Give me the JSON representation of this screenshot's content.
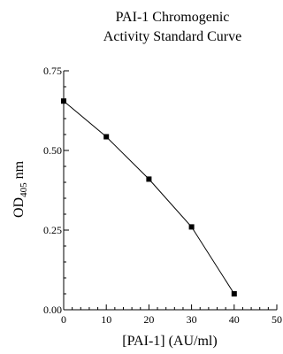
{
  "chart_data": {
    "type": "line",
    "title": [
      "PAI-1 Chromogenic",
      "Activity Standard Curve"
    ],
    "xlabel": "[PAI-1] (AU/ml)",
    "ylabel": {
      "main": "OD",
      "subscript": "405",
      "suffix": " nm"
    },
    "xlim": [
      0,
      50
    ],
    "ylim": [
      0,
      0.75
    ],
    "x_major_ticks": [
      0,
      10,
      20,
      30,
      40,
      50
    ],
    "x_tick_labels": [
      "0",
      "10",
      "20",
      "30",
      "40",
      "50"
    ],
    "x_minor_step": 2,
    "y_major_ticks": [
      0,
      0.25,
      0.5,
      0.75
    ],
    "y_tick_labels": [
      "0.00",
      "0.25",
      "0.50",
      "0.75"
    ],
    "y_minor_step": 0.05,
    "grid": false,
    "marker": "square",
    "color": "#000000",
    "x": [
      0,
      10,
      20,
      30,
      40
    ],
    "y": [
      0.655,
      0.543,
      0.41,
      0.26,
      0.05
    ]
  }
}
